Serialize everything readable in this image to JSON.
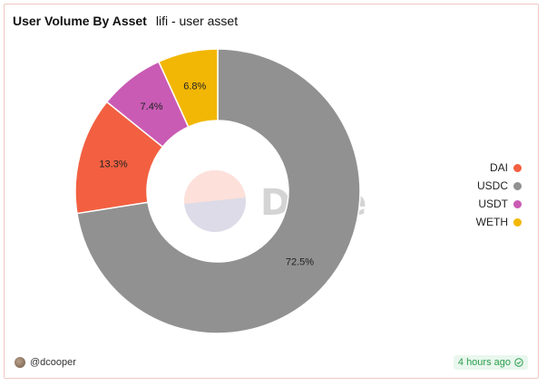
{
  "header": {
    "title": "User Volume By Asset",
    "subtitle": "lifi - user asset"
  },
  "chart_data": {
    "type": "pie",
    "donut": true,
    "start_angle_deg": 0,
    "direction": "clockwise",
    "slices": [
      {
        "name": "USDC",
        "value": 72.5,
        "label": "72.5%",
        "color": "#919191"
      },
      {
        "name": "DAI",
        "value": 13.3,
        "label": "13.3%",
        "color": "#f26041"
      },
      {
        "name": "USDT",
        "value": 7.4,
        "label": "7.4%",
        "color": "#c95bb4"
      },
      {
        "name": "WETH",
        "value": 6.8,
        "label": "6.8%",
        "color": "#f2b705"
      }
    ],
    "legend": {
      "placement": "right",
      "entries": [
        {
          "name": "DAI",
          "color": "#f26041"
        },
        {
          "name": "USDC",
          "color": "#919191"
        },
        {
          "name": "USDT",
          "color": "#c95bb4"
        },
        {
          "name": "WETH",
          "color": "#f2b705"
        }
      ]
    },
    "watermark": "Dune"
  },
  "footer": {
    "author": "@dcooper",
    "updated": "4 hours ago"
  },
  "icons": {
    "avatar": "user-avatar-icon",
    "check": "check-circle-icon"
  }
}
